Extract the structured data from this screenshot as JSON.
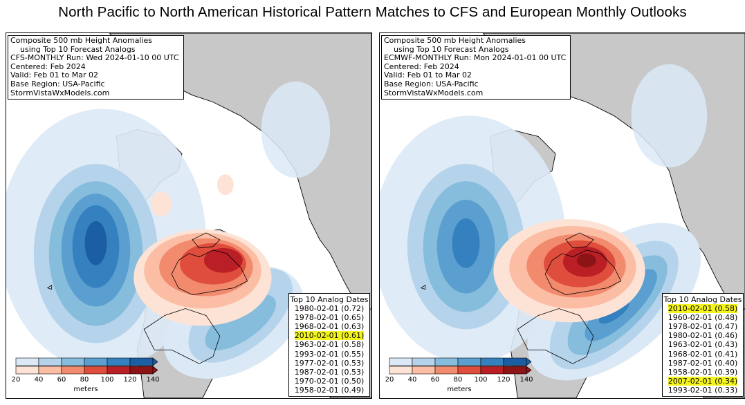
{
  "title": "North Pacific to North American Historical Pattern Matches to CFS and European Monthly Outlooks",
  "panels": [
    {
      "info_lines": [
        "Composite 500 mb Height Anomalies",
        "    using Top 10 Forecast Analogs",
        "CFS-MONTHLY Run: Wed 2024-01-10 00 UTC",
        "Centered: Feb 2024",
        "Valid: Feb 01 to Mar 02",
        "Base Region: USA-Pacific",
        "StormVistaWxModels.com"
      ],
      "analog_title": "Top 10 Analog Dates",
      "analogs": [
        {
          "text": "1980-02-01 (0.72)",
          "highlight": false
        },
        {
          "text": "1978-02-01 (0.65)",
          "highlight": false
        },
        {
          "text": "1968-02-01 (0.63)",
          "highlight": false
        },
        {
          "text": "2010-02-01 (0.61)",
          "highlight": true
        },
        {
          "text": "1963-02-01 (0.58)",
          "highlight": false
        },
        {
          "text": "1993-02-01 (0.55)",
          "highlight": false
        },
        {
          "text": "1977-02-01 (0.53)",
          "highlight": false
        },
        {
          "text": "1987-02-01 (0.53)",
          "highlight": false
        },
        {
          "text": "1970-02-01 (0.50)",
          "highlight": false
        },
        {
          "text": "1958-02-01 (0.49)",
          "highlight": false
        }
      ]
    },
    {
      "info_lines": [
        "Composite 500 mb Height Anomalies",
        "    using Top 10 Forecast Analogs",
        "ECMWF-MONTHLY Run: Mon 2024-01-01 00 UTC",
        "Centered: Feb 2024",
        "Valid: Feb 01 to Mar 02",
        "Base Region: USA-Pacific",
        "StormVistaWxModels.com"
      ],
      "analog_title": "Top 10 Analog Dates",
      "analogs": [
        {
          "text": "2010-02-01 (0.58)",
          "highlight": true
        },
        {
          "text": "1960-02-01 (0.48)",
          "highlight": false
        },
        {
          "text": "1978-02-01 (0.47)",
          "highlight": false
        },
        {
          "text": "1980-02-01 (0.46)",
          "highlight": false
        },
        {
          "text": "1963-02-01 (0.43)",
          "highlight": false
        },
        {
          "text": "1968-02-01 (0.41)",
          "highlight": false
        },
        {
          "text": "1987-02-01 (0.40)",
          "highlight": false
        },
        {
          "text": "1958-02-01 (0.39)",
          "highlight": false
        },
        {
          "text": "2007-02-01 (0.34)",
          "highlight": true
        },
        {
          "text": "1993-02-01 (0.33)",
          "highlight": false
        }
      ]
    }
  ],
  "legend": {
    "labels": [
      "20",
      "40",
      "60",
      "80",
      "100",
      "120",
      "140"
    ],
    "units": "meters",
    "blue_colors": [
      "#dbe9f6",
      "#b5d3ea",
      "#86bcdc",
      "#5a9fcf",
      "#3580bf",
      "#1c5ea3"
    ],
    "red_colors": [
      "#fde3d6",
      "#fbbda4",
      "#f28a6e",
      "#df4d3c",
      "#bb1f26",
      "#8c1316"
    ]
  },
  "colors": {
    "land": "#c8c8c8",
    "highlight": "#f3f31e"
  }
}
